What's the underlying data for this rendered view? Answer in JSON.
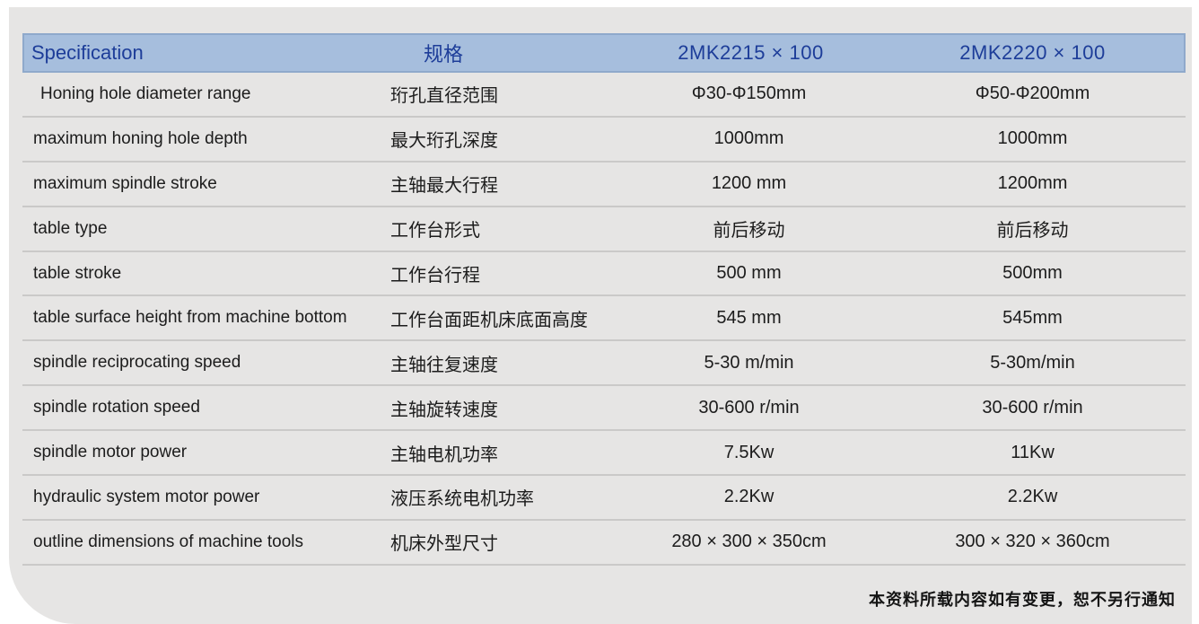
{
  "table": {
    "header": {
      "spec_en": "Specification",
      "spec_zh": "规格",
      "model_1": "2MK2215 × 100",
      "model_2": "2MK2220 × 100"
    },
    "rows": [
      {
        "en": "Honing hole diameter range",
        "zh": "珩孔直径范围",
        "v1": "Φ30-Φ150mm",
        "v2": "Φ50-Φ200mm"
      },
      {
        "en": "maximum honing hole depth",
        "zh": "最大珩孔深度",
        "v1": "1000mm",
        "v2": "1000mm"
      },
      {
        "en": "maximum spindle stroke",
        "zh": "主轴最大行程",
        "v1": "1200 mm",
        "v2": "1200mm"
      },
      {
        "en": "table type",
        "zh": "工作台形式",
        "v1": "前后移动",
        "v2": "前后移动"
      },
      {
        "en": "table stroke",
        "zh": "工作台行程",
        "v1": "500 mm",
        "v2": "500mm"
      },
      {
        "en": "table surface height from machine bottom",
        "zh": "工作台面距机床底面高度",
        "v1": "545 mm",
        "v2": "545mm"
      },
      {
        "en": "spindle reciprocating speed",
        "zh": "主轴往复速度",
        "v1": "5-30 m/min",
        "v2": "5-30m/min"
      },
      {
        "en": "spindle rotation speed",
        "zh": "主轴旋转速度",
        "v1": "30-600 r/min",
        "v2": "30-600 r/min"
      },
      {
        "en": "spindle motor power",
        "zh": "主轴电机功率",
        "v1": "7.5Kw",
        "v2": "11Kw"
      },
      {
        "en": "hydraulic system motor power",
        "zh": "液压系统电机功率",
        "v1": "2.2Kw",
        "v2": "2.2Kw"
      },
      {
        "en": "outline dimensions of machine tools",
        "zh": "机床外型尺寸",
        "v1": "280 × 300 × 350cm",
        "v2": "300 × 320 × 360cm"
      }
    ]
  },
  "footer": {
    "note": "本资料所载内容如有变更，恕不另行通知"
  },
  "colors": {
    "header_band": "#a6bedd",
    "header_border": "#8fa9cb",
    "header_text": "#1d3d99",
    "card_background": "#e6e5e4",
    "divider": "#cac9c8",
    "body_text": "#1c1c1c"
  }
}
